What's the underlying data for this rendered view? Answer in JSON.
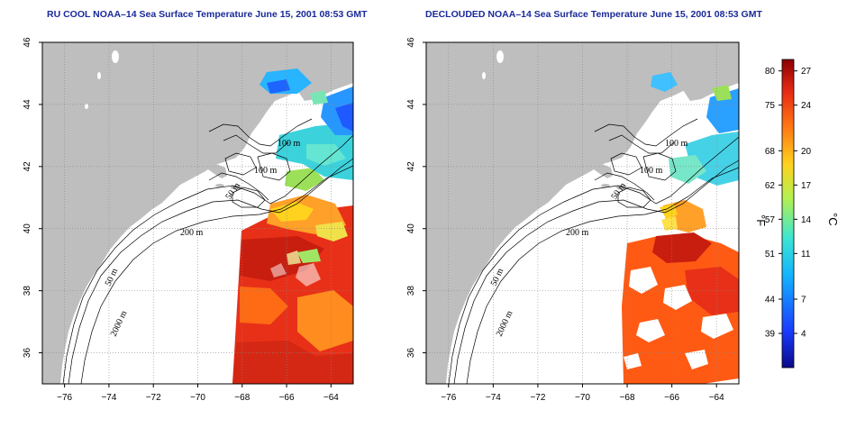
{
  "panels": [
    {
      "title": "RU COOL NOAA–14 Sea Surface Temperature June 15, 2001 08:53 GMT",
      "isobaths": [
        "100 m",
        "100 m",
        "50 m",
        "200 m",
        "50 m",
        "2000 m"
      ]
    },
    {
      "title": "DECLOUDED NOAA–14 Sea Surface Temperature June 15, 2001 08:53 GMT",
      "isobaths": [
        "100 m",
        "100 m",
        "50 m",
        "200 m",
        "50 m",
        "2000 m"
      ]
    }
  ],
  "axes": {
    "x_ticks": [
      "−76",
      "−74",
      "−72",
      "−70",
      "−68",
      "−66",
      "−64"
    ],
    "y_ticks": [
      "46",
      "44",
      "42",
      "40",
      "38",
      "36"
    ],
    "x_values": [
      -76,
      -74,
      -72,
      -70,
      -68,
      -66,
      -64
    ],
    "y_values": [
      46,
      44,
      42,
      40,
      38,
      36
    ],
    "xlim": [
      -77,
      -63
    ],
    "ylim": [
      35,
      46
    ],
    "grid": "dotted"
  },
  "colorbar": {
    "fahrenheit_label": "°F",
    "celsius_label": "°C",
    "fahrenheit_ticks": [
      "80",
      "75",
      "68",
      "62",
      "57",
      "51",
      "44",
      "39"
    ],
    "celsius_ticks": [
      "27",
      "24",
      "20",
      "17",
      "14",
      "11",
      "7",
      "4"
    ],
    "celsius_values": [
      27,
      24,
      20,
      17,
      14,
      11,
      7,
      4
    ],
    "range_c": [
      1,
      28
    ],
    "colors": [
      "#0a0a8a",
      "#1a3cff",
      "#14b4ff",
      "#3ce6d2",
      "#b4f050",
      "#ffd21e",
      "#ff7814",
      "#e62814",
      "#8a0000"
    ]
  },
  "colors": {
    "land": "#bebebe",
    "ocean": "#ffffff",
    "title": "#1a2a9a"
  }
}
